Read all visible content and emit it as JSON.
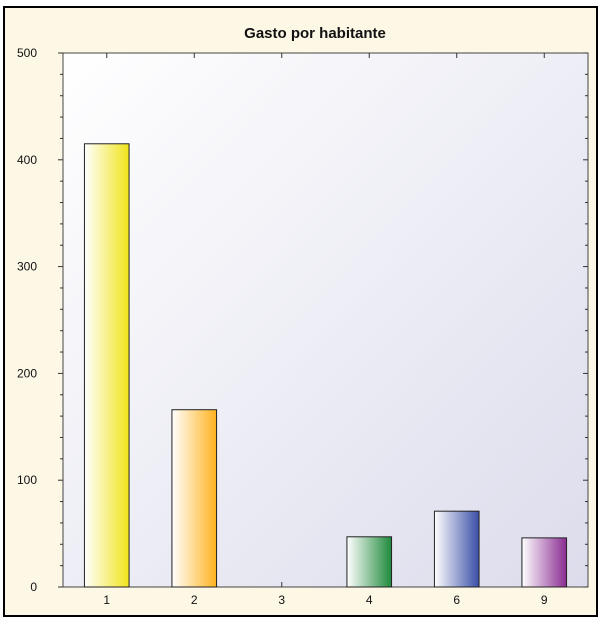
{
  "chart_data": {
    "type": "bar",
    "title": "Gasto por habitante",
    "xlabel": "",
    "ylabel": "",
    "categories": [
      "1",
      "2",
      "3",
      "4",
      "6",
      "9"
    ],
    "values": [
      415,
      166,
      0,
      47,
      71,
      46
    ],
    "ylim": [
      0,
      500
    ],
    "yticks": [
      0,
      100,
      200,
      300,
      400,
      500
    ],
    "grid": false,
    "legend": "none",
    "bar_colors": [
      "#f0e41a",
      "#ffb21e",
      "#cccccc",
      "#1f8a3c",
      "#3a4ea6",
      "#8a2c92"
    ],
    "plot_background": [
      "#ffffff",
      "#dcdcec"
    ],
    "frame_background": "#fdf7e6"
  }
}
